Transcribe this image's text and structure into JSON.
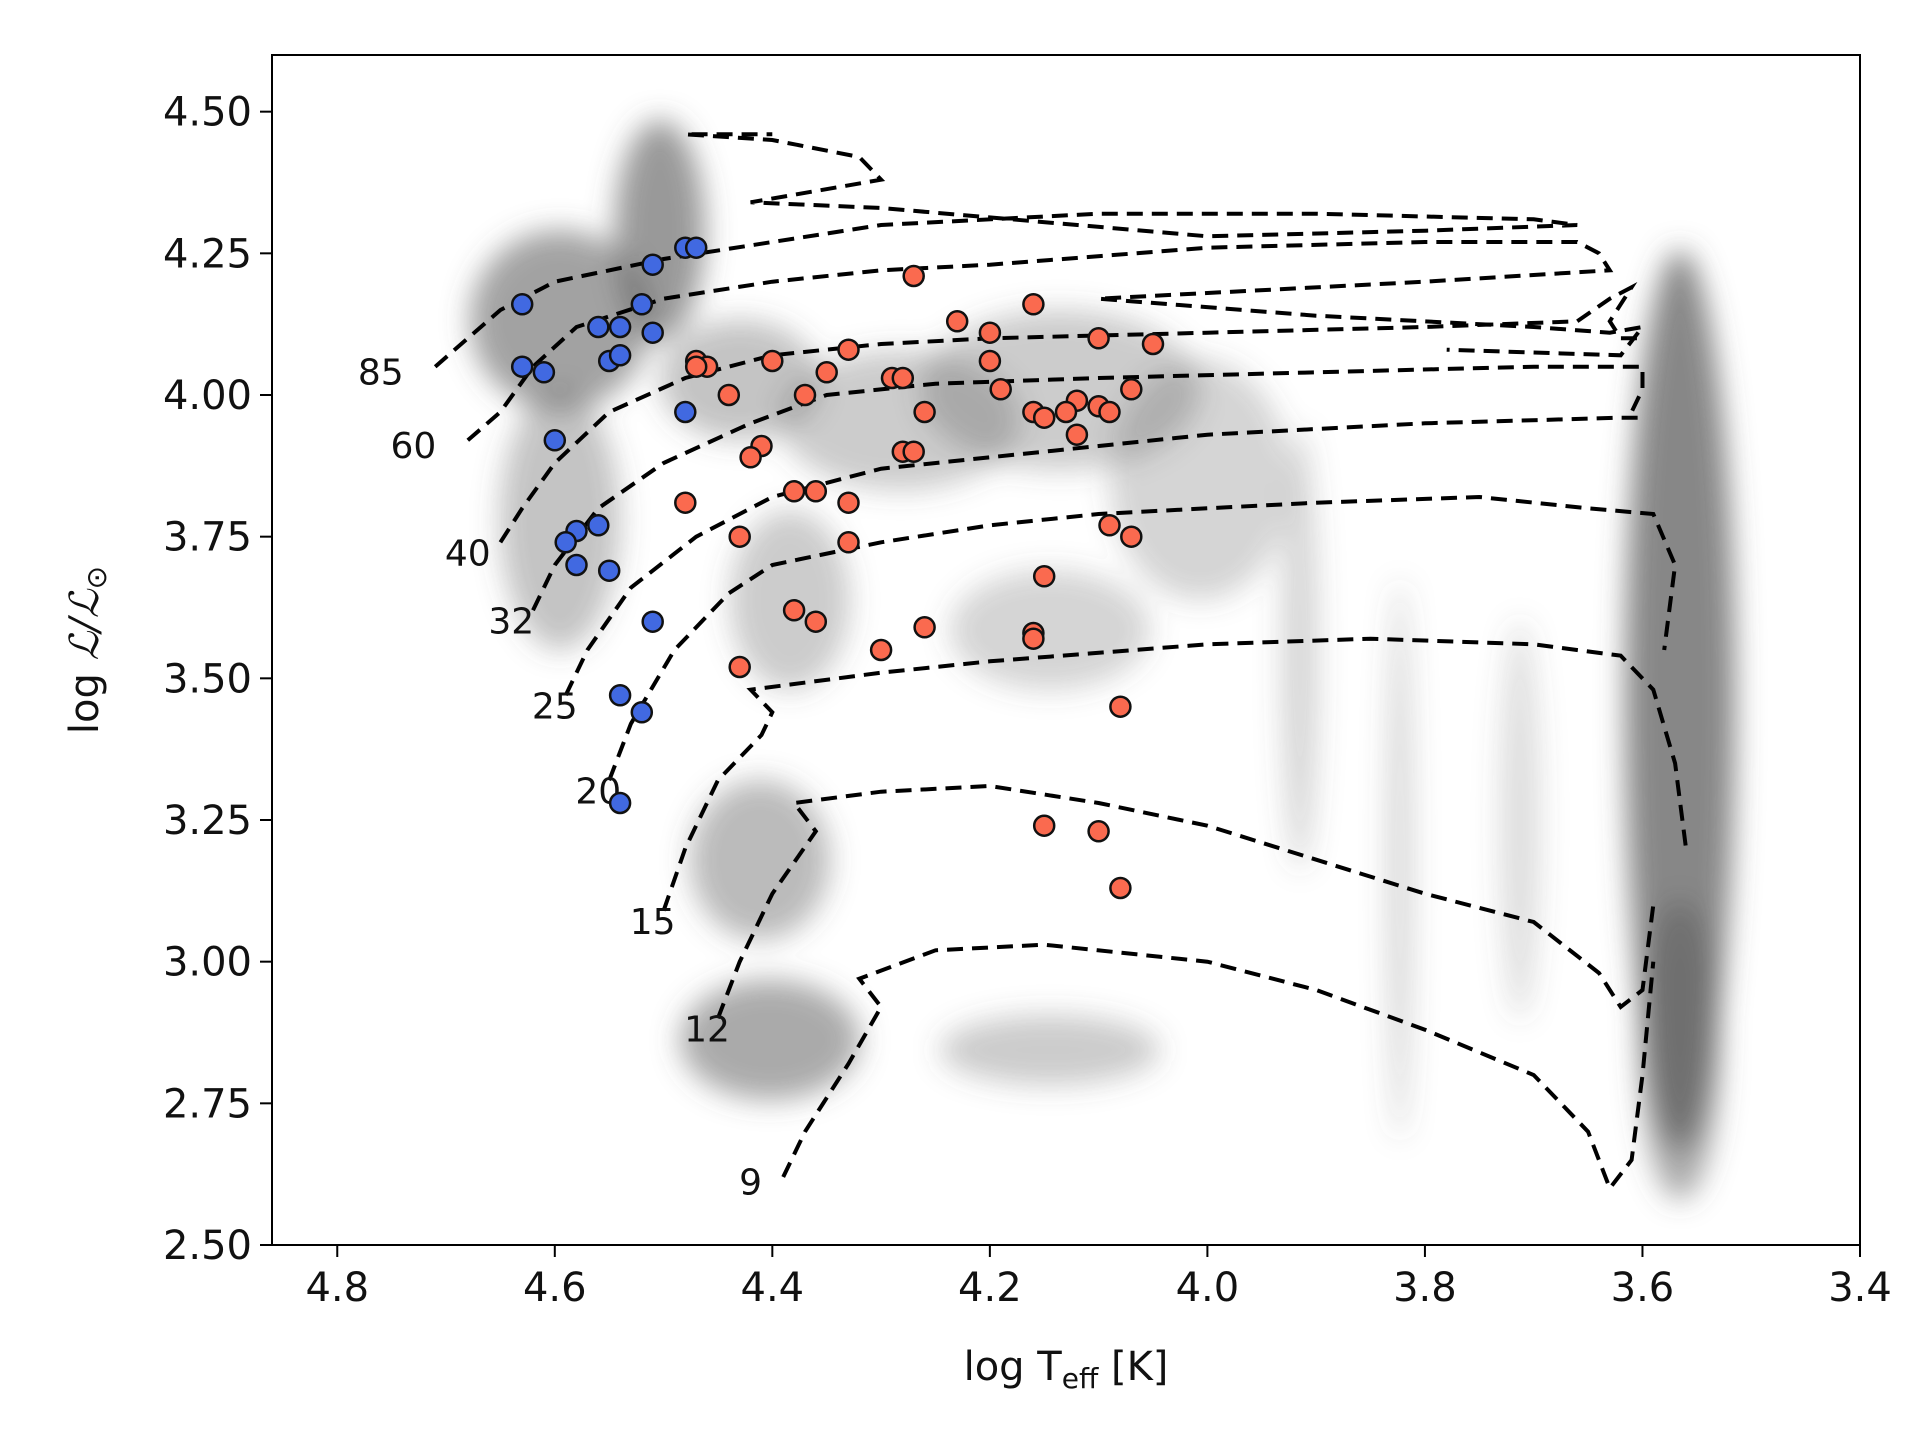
{
  "chart_data": {
    "type": "scatter",
    "title": "",
    "xlabel_main": "log T",
    "xlabel_sub": "eff",
    "xlabel_unit": " [K]",
    "ylabel_main": "log ",
    "ylabel_sym": "ℒ/ℒ",
    "ylabel_sub": "⊙",
    "xlim": [
      4.86,
      3.4
    ],
    "ylim": [
      2.5,
      4.6
    ],
    "x_ticks": [
      4.8,
      4.6,
      4.4,
      4.2,
      4.0,
      3.8,
      3.6,
      3.4
    ],
    "x_tick_labels": [
      "4.8",
      "4.6",
      "4.4",
      "4.2",
      "4.0",
      "3.8",
      "3.6",
      "3.4"
    ],
    "y_ticks": [
      2.5,
      2.75,
      3.0,
      3.25,
      3.5,
      3.75,
      4.0,
      4.25,
      4.5
    ],
    "y_tick_labels": [
      "2.50",
      "2.75",
      "3.00",
      "3.25",
      "3.50",
      "3.75",
      "4.00",
      "4.25",
      "4.50"
    ],
    "colors": {
      "blue": "#4169e1",
      "red": "#fa6a4f",
      "track": "#000000"
    },
    "background_density": "grey density contours (observed population)",
    "series": [
      {
        "name": "blue stars",
        "color": "#4169e1",
        "points": [
          [
            4.63,
            4.16
          ],
          [
            4.56,
            4.12
          ],
          [
            4.54,
            4.12
          ],
          [
            4.52,
            4.16
          ],
          [
            4.51,
            4.23
          ],
          [
            4.48,
            4.26
          ],
          [
            4.47,
            4.26
          ],
          [
            4.51,
            4.11
          ],
          [
            4.63,
            4.05
          ],
          [
            4.61,
            4.04
          ],
          [
            4.55,
            4.06
          ],
          [
            4.54,
            4.07
          ],
          [
            4.48,
            3.97
          ],
          [
            4.6,
            3.92
          ],
          [
            4.56,
            3.77
          ],
          [
            4.58,
            3.76
          ],
          [
            4.59,
            3.74
          ],
          [
            4.58,
            3.7
          ],
          [
            4.55,
            3.69
          ],
          [
            4.51,
            3.6
          ],
          [
            4.54,
            3.47
          ],
          [
            4.52,
            3.44
          ],
          [
            4.54,
            3.28
          ]
        ]
      },
      {
        "name": "red stars",
        "color": "#fa6a4f",
        "points": [
          [
            4.27,
            4.21
          ],
          [
            4.23,
            4.13
          ],
          [
            4.16,
            4.16
          ],
          [
            4.2,
            4.11
          ],
          [
            4.1,
            4.1
          ],
          [
            4.05,
            4.09
          ],
          [
            4.33,
            4.08
          ],
          [
            4.2,
            4.06
          ],
          [
            4.4,
            4.06
          ],
          [
            4.47,
            4.06
          ],
          [
            4.46,
            4.05
          ],
          [
            4.47,
            4.05
          ],
          [
            4.35,
            4.04
          ],
          [
            4.29,
            4.03
          ],
          [
            4.28,
            4.03
          ],
          [
            4.44,
            4.0
          ],
          [
            4.37,
            4.0
          ],
          [
            4.19,
            4.01
          ],
          [
            4.07,
            4.01
          ],
          [
            4.12,
            3.99
          ],
          [
            4.1,
            3.98
          ],
          [
            4.09,
            3.97
          ],
          [
            4.16,
            3.97
          ],
          [
            4.13,
            3.97
          ],
          [
            4.15,
            3.96
          ],
          [
            4.26,
            3.97
          ],
          [
            4.12,
            3.93
          ],
          [
            4.41,
            3.91
          ],
          [
            4.28,
            3.9
          ],
          [
            4.27,
            3.9
          ],
          [
            4.42,
            3.89
          ],
          [
            4.38,
            3.83
          ],
          [
            4.36,
            3.83
          ],
          [
            4.33,
            3.81
          ],
          [
            4.48,
            3.81
          ],
          [
            4.09,
            3.77
          ],
          [
            4.07,
            3.75
          ],
          [
            4.43,
            3.75
          ],
          [
            4.33,
            3.74
          ],
          [
            4.15,
            3.68
          ],
          [
            4.38,
            3.62
          ],
          [
            4.36,
            3.6
          ],
          [
            4.26,
            3.59
          ],
          [
            4.16,
            3.58
          ],
          [
            4.16,
            3.57
          ],
          [
            4.3,
            3.55
          ],
          [
            4.43,
            3.52
          ],
          [
            4.08,
            3.45
          ],
          [
            4.15,
            3.24
          ],
          [
            4.1,
            3.23
          ],
          [
            4.08,
            3.13
          ]
        ]
      }
    ],
    "tracks": [
      {
        "label": "85",
        "label_at": [
          4.76,
          4.04
        ],
        "points": [
          [
            4.71,
            4.05
          ],
          [
            4.68,
            4.1
          ],
          [
            4.65,
            4.15
          ],
          [
            4.6,
            4.2
          ],
          [
            4.5,
            4.24
          ],
          [
            4.4,
            4.27
          ],
          [
            4.3,
            4.3
          ],
          [
            4.1,
            4.32
          ],
          [
            3.9,
            4.32
          ],
          [
            3.7,
            4.31
          ],
          [
            3.66,
            4.3
          ],
          [
            3.8,
            4.29
          ],
          [
            4.0,
            4.28
          ],
          [
            4.3,
            4.33
          ],
          [
            4.42,
            4.34
          ],
          [
            4.3,
            4.38
          ],
          [
            4.32,
            4.42
          ],
          [
            4.4,
            4.45
          ],
          [
            4.48,
            4.46
          ],
          [
            4.4,
            4.46
          ]
        ]
      },
      {
        "label": "60",
        "label_at": [
          4.73,
          3.91
        ],
        "points": [
          [
            4.68,
            3.92
          ],
          [
            4.65,
            3.97
          ],
          [
            4.62,
            4.05
          ],
          [
            4.58,
            4.12
          ],
          [
            4.5,
            4.17
          ],
          [
            4.4,
            4.2
          ],
          [
            4.3,
            4.22
          ],
          [
            4.2,
            4.23
          ],
          [
            4.0,
            4.26
          ],
          [
            3.8,
            4.27
          ],
          [
            3.66,
            4.27
          ],
          [
            3.64,
            4.25
          ],
          [
            3.63,
            4.22
          ],
          [
            3.8,
            4.2
          ],
          [
            4.0,
            4.18
          ],
          [
            4.1,
            4.17
          ],
          [
            3.9,
            4.14
          ],
          [
            3.7,
            4.12
          ],
          [
            3.63,
            4.11
          ],
          [
            3.6,
            4.12
          ],
          [
            3.62,
            4.07
          ],
          [
            3.78,
            4.08
          ]
        ]
      },
      {
        "label": "40",
        "label_at": [
          4.68,
          3.72
        ],
        "points": [
          [
            4.65,
            3.74
          ],
          [
            4.63,
            3.8
          ],
          [
            4.6,
            3.88
          ],
          [
            4.55,
            3.97
          ],
          [
            4.48,
            4.03
          ],
          [
            4.4,
            4.07
          ],
          [
            4.3,
            4.09
          ],
          [
            4.2,
            4.1
          ],
          [
            4.0,
            4.11
          ],
          [
            3.8,
            4.12
          ],
          [
            3.66,
            4.13
          ],
          [
            3.63,
            4.17
          ],
          [
            3.61,
            4.19
          ],
          [
            3.63,
            4.13
          ],
          [
            3.62,
            4.1
          ],
          [
            3.6,
            4.1
          ]
        ]
      },
      {
        "label": "32",
        "label_at": [
          4.64,
          3.6
        ],
        "points": [
          [
            4.62,
            3.62
          ],
          [
            4.6,
            3.7
          ],
          [
            4.56,
            3.8
          ],
          [
            4.5,
            3.88
          ],
          [
            4.42,
            3.95
          ],
          [
            4.35,
            4.0
          ],
          [
            4.25,
            4.02
          ],
          [
            4.1,
            4.03
          ],
          [
            3.9,
            4.04
          ],
          [
            3.7,
            4.05
          ],
          [
            3.6,
            4.05
          ],
          [
            3.6,
            4.01
          ],
          [
            3.61,
            3.97
          ]
        ]
      },
      {
        "label": "25",
        "label_at": [
          4.6,
          3.45
        ],
        "points": [
          [
            4.59,
            3.47
          ],
          [
            4.57,
            3.55
          ],
          [
            4.53,
            3.66
          ],
          [
            4.47,
            3.75
          ],
          [
            4.4,
            3.82
          ],
          [
            4.3,
            3.87
          ],
          [
            4.2,
            3.89
          ],
          [
            4.0,
            3.93
          ],
          [
            3.8,
            3.95
          ],
          [
            3.62,
            3.96
          ],
          [
            3.6,
            3.96
          ]
        ]
      },
      {
        "label": "20",
        "label_at": [
          4.56,
          3.3
        ],
        "points": [
          [
            4.55,
            3.32
          ],
          [
            4.53,
            3.42
          ],
          [
            4.49,
            3.55
          ],
          [
            4.44,
            3.65
          ],
          [
            4.4,
            3.7
          ],
          [
            4.3,
            3.74
          ],
          [
            4.2,
            3.77
          ],
          [
            4.1,
            3.79
          ],
          [
            4.0,
            3.8
          ],
          [
            3.9,
            3.81
          ],
          [
            3.75,
            3.82
          ],
          [
            3.65,
            3.8
          ],
          [
            3.59,
            3.79
          ],
          [
            3.57,
            3.7
          ],
          [
            3.58,
            3.55
          ]
        ]
      },
      {
        "label": "15",
        "label_at": [
          4.51,
          3.07
        ],
        "points": [
          [
            4.5,
            3.09
          ],
          [
            4.48,
            3.2
          ],
          [
            4.45,
            3.32
          ],
          [
            4.41,
            3.4
          ],
          [
            4.4,
            3.44
          ],
          [
            4.42,
            3.48
          ],
          [
            4.3,
            3.51
          ],
          [
            4.2,
            3.53
          ],
          [
            4.0,
            3.56
          ],
          [
            3.85,
            3.57
          ],
          [
            3.7,
            3.56
          ],
          [
            3.62,
            3.54
          ],
          [
            3.59,
            3.48
          ],
          [
            3.57,
            3.35
          ],
          [
            3.56,
            3.2
          ]
        ]
      },
      {
        "label": "12",
        "label_at": [
          4.46,
          2.88
        ],
        "points": [
          [
            4.45,
            2.9
          ],
          [
            4.43,
            3.0
          ],
          [
            4.4,
            3.12
          ],
          [
            4.36,
            3.23
          ],
          [
            4.38,
            3.28
          ],
          [
            4.3,
            3.3
          ],
          [
            4.2,
            3.31
          ],
          [
            4.1,
            3.28
          ],
          [
            4.0,
            3.24
          ],
          [
            3.9,
            3.18
          ],
          [
            3.8,
            3.12
          ],
          [
            3.7,
            3.07
          ],
          [
            3.64,
            2.98
          ],
          [
            3.62,
            2.92
          ],
          [
            3.6,
            2.95
          ],
          [
            3.59,
            3.1
          ]
        ]
      },
      {
        "label": "9",
        "label_at": [
          4.42,
          2.61
        ],
        "points": [
          [
            4.39,
            2.62
          ],
          [
            4.37,
            2.7
          ],
          [
            4.33,
            2.82
          ],
          [
            4.3,
            2.92
          ],
          [
            4.32,
            2.97
          ],
          [
            4.25,
            3.02
          ],
          [
            4.15,
            3.03
          ],
          [
            4.0,
            3.0
          ],
          [
            3.9,
            2.95
          ],
          [
            3.8,
            2.88
          ],
          [
            3.7,
            2.8
          ],
          [
            3.65,
            2.7
          ],
          [
            3.63,
            2.6
          ],
          [
            3.61,
            2.65
          ],
          [
            3.6,
            2.8
          ],
          [
            3.59,
            3.0
          ]
        ]
      }
    ]
  }
}
